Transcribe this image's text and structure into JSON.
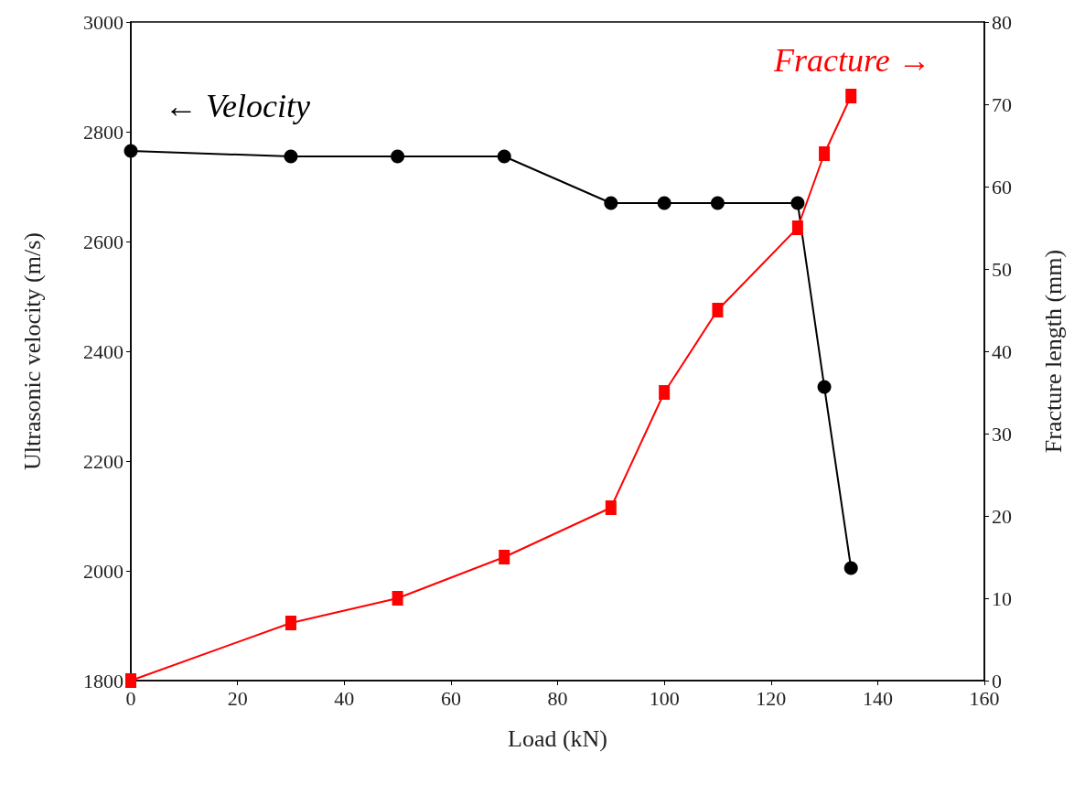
{
  "chart_data": {
    "type": "line",
    "xlabel": "Load (kN)",
    "ylabel": "Ultrasonic velocity (m/s)",
    "y2label": "Fracture length (mm)",
    "x": [
      0,
      30,
      50,
      70,
      90,
      100,
      110,
      125,
      130,
      135
    ],
    "series": [
      {
        "color": "#000000",
        "marker": "circle",
        "values": [
          2765,
          2755,
          2755,
          2755,
          2670,
          2670,
          2670,
          2670,
          2335,
          2005
        ]
      },
      {
        "color": "#ff0000",
        "marker": "square",
        "axis": "y2",
        "values": [
          0,
          7,
          10,
          15,
          21,
          35,
          45,
          55,
          64,
          71
        ]
      }
    ],
    "xlim": [
      0,
      160
    ],
    "xticks": [
      0,
      20,
      40,
      60,
      80,
      100,
      120,
      140,
      160
    ],
    "ylim": [
      1800,
      3000
    ],
    "yticks": [
      1800,
      2000,
      2200,
      2400,
      2600,
      2800,
      3000
    ],
    "y2lim": [
      0,
      80
    ],
    "y2ticks": [
      0,
      10,
      20,
      30,
      40,
      50,
      60,
      70,
      80
    ],
    "annotations": [
      "← Velocity",
      "Fracture →"
    ],
    "grid": false
  }
}
